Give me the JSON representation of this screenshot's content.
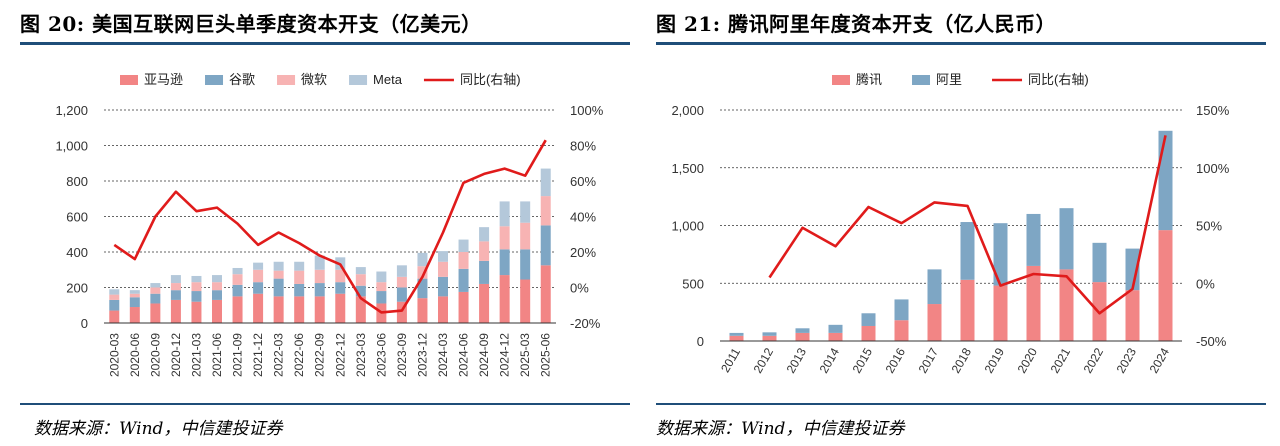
{
  "chart_data": [
    {
      "type": "bar",
      "stacked": true,
      "title": "图 20: 美国互联网巨头单季度资本开支（亿美元）",
      "source": "数据来源：Wind，中信建投证券",
      "categories": [
        "2020-03",
        "2020-06",
        "2020-09",
        "2020-12",
        "2021-03",
        "2021-06",
        "2021-09",
        "2021-12",
        "2022-03",
        "2022-06",
        "2022-09",
        "2022-12",
        "2023-03",
        "2023-06",
        "2023-09",
        "2023-12",
        "2024-03",
        "2024-06",
        "2024-09",
        "2024-12",
        "2025-03",
        "2025-06"
      ],
      "series": [
        {
          "name": "亚马逊",
          "color": "#f28585",
          "values": [
            70,
            90,
            110,
            130,
            120,
            130,
            150,
            165,
            150,
            150,
            150,
            165,
            150,
            110,
            120,
            140,
            150,
            175,
            220,
            270,
            245,
            325
          ]
        },
        {
          "name": "谷歌",
          "color": "#7ea6c4",
          "values": [
            60,
            55,
            55,
            55,
            60,
            55,
            65,
            65,
            100,
            70,
            75,
            65,
            60,
            70,
            80,
            110,
            110,
            130,
            130,
            145,
            170,
            225
          ]
        },
        {
          "name": "微软",
          "color": "#f7b3b3",
          "values": [
            30,
            20,
            35,
            40,
            50,
            45,
            60,
            70,
            45,
            75,
            75,
            70,
            65,
            50,
            60,
            70,
            85,
            95,
            110,
            130,
            150,
            165
          ]
        },
        {
          "name": "Meta",
          "color": "#b4c8da",
          "values": [
            30,
            20,
            25,
            45,
            35,
            40,
            35,
            40,
            50,
            50,
            80,
            70,
            40,
            60,
            65,
            75,
            60,
            70,
            80,
            140,
            120,
            155
          ]
        }
      ],
      "line": {
        "name": "同比(右轴)",
        "color": "#e01b1b",
        "values": [
          24,
          16,
          40,
          54,
          43,
          45,
          36,
          24,
          31,
          25,
          18,
          13,
          -6,
          -14,
          -13,
          6,
          31,
          59,
          64,
          67,
          63,
          83
        ]
      },
      "ylim": [
        0,
        1200
      ],
      "yticks": [
        "0",
        "200",
        "400",
        "600",
        "800",
        "1,000",
        "1,200"
      ],
      "y2lim": [
        -20,
        100
      ],
      "y2ticks": [
        "-20%",
        "0%",
        "20%",
        "40%",
        "60%",
        "80%",
        "100%"
      ]
    },
    {
      "type": "bar",
      "stacked": true,
      "title": "图 21: 腾讯阿里年度资本开支（亿人民币）",
      "source": "数据来源：Wind，中信建投证券",
      "categories": [
        "2011",
        "2012",
        "2013",
        "2014",
        "2015",
        "2016",
        "2017",
        "2018",
        "2019",
        "2020",
        "2021",
        "2022",
        "2023",
        "2024"
      ],
      "series": [
        {
          "name": "腾讯",
          "color": "#f28585",
          "values": [
            45,
            45,
            70,
            70,
            130,
            180,
            320,
            530,
            480,
            650,
            620,
            510,
            440,
            960
          ]
        },
        {
          "name": "阿里",
          "color": "#7ea6c4",
          "values": [
            25,
            30,
            40,
            70,
            110,
            180,
            300,
            500,
            540,
            450,
            530,
            340,
            360,
            860
          ]
        }
      ],
      "line": {
        "name": "同比(右轴)",
        "color": "#e01b1b",
        "values": [
          null,
          5,
          48,
          32,
          66,
          52,
          70,
          67,
          -2,
          8,
          6,
          -26,
          -5,
          128
        ]
      },
      "ylim": [
        0,
        2000
      ],
      "yticks": [
        "0",
        "500",
        "1,000",
        "1,500",
        "2,000"
      ],
      "y2lim": [
        -50,
        150
      ],
      "y2ticks": [
        "-50%",
        "0%",
        "50%",
        "100%",
        "150%"
      ]
    }
  ]
}
